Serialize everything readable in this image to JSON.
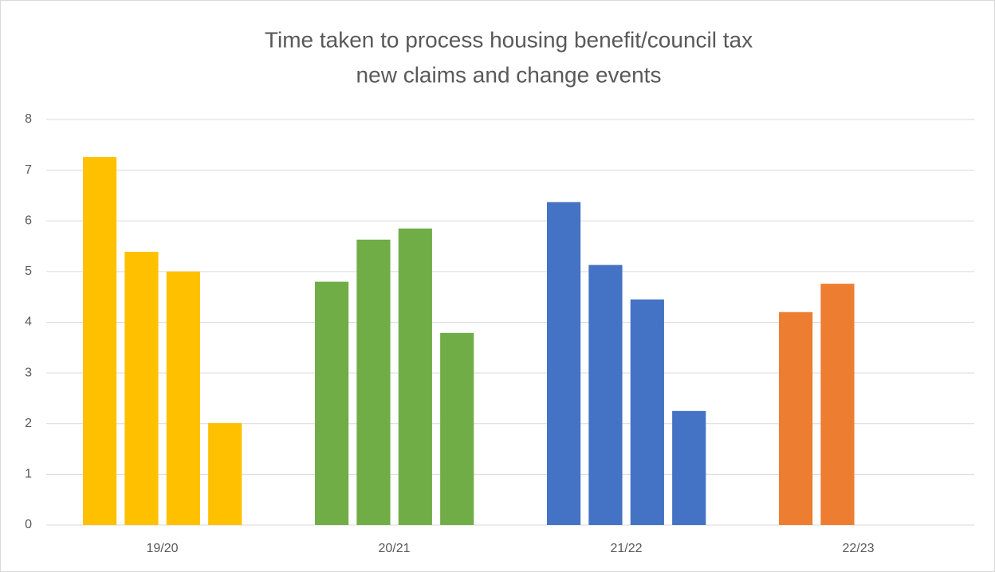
{
  "chart_data": {
    "type": "bar",
    "title": [
      "Time taken to process housing benefit/council tax",
      "new claims and change events"
    ],
    "categories": [
      "19/20",
      "20/21",
      "21/22",
      "22/23"
    ],
    "colors": [
      "#ffc000",
      "#70ad47",
      "#4472c4",
      "#ed7d31"
    ],
    "series": [
      {
        "values": [
          7.26,
          4.8,
          6.37,
          4.2
        ]
      },
      {
        "values": [
          5.39,
          5.63,
          5.13,
          4.76
        ]
      },
      {
        "values": [
          5.0,
          5.85,
          4.45,
          null
        ]
      },
      {
        "values": [
          2.01,
          3.79,
          2.25,
          null
        ]
      }
    ],
    "ylim": [
      0,
      8
    ],
    "yticks": [
      0,
      1,
      2,
      3,
      4,
      5,
      6,
      7,
      8
    ],
    "grid": true
  }
}
